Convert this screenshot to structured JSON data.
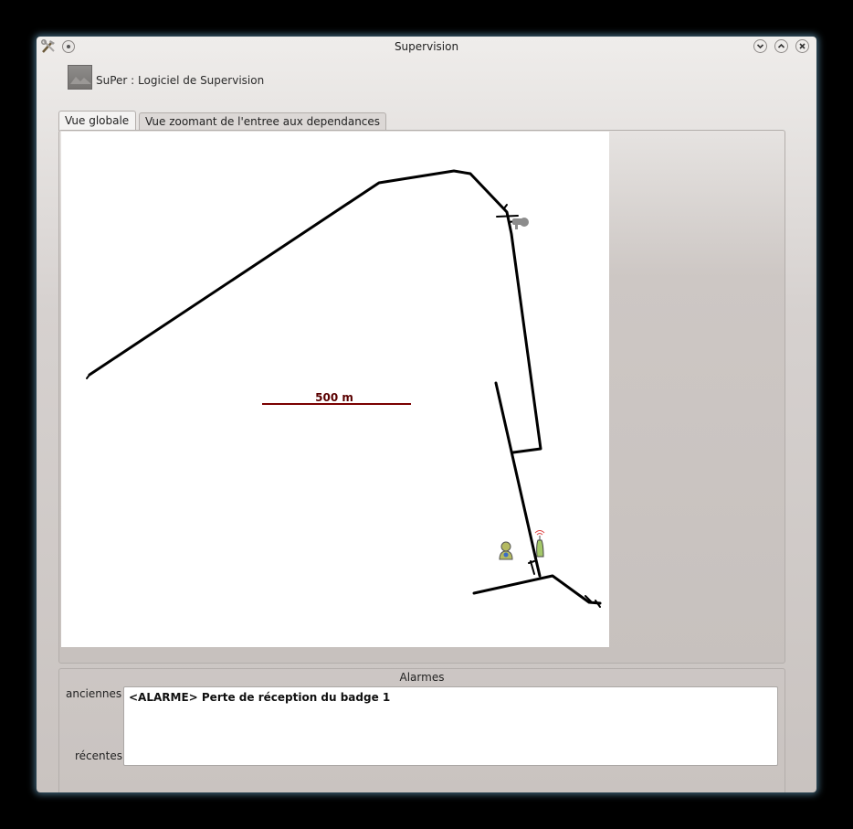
{
  "window": {
    "title": "Supervision",
    "controls": [
      "minimize",
      "maximize",
      "close"
    ]
  },
  "header": {
    "app_title": "SuPer : Logiciel de Supervision"
  },
  "tabs": [
    {
      "label": "Vue globale",
      "active": true
    },
    {
      "label": "Vue zoomant de l'entree aux dependances",
      "active": false
    }
  ],
  "map": {
    "scale_label": "500 m",
    "icons": [
      "camera-icon",
      "person-icon",
      "antenna-icon"
    ]
  },
  "alarms": {
    "title": "Alarmes",
    "label_old": "anciennes",
    "label_recent": "récentes",
    "messages": [
      "<ALARME> Perte de réception du badge 1"
    ]
  },
  "colors": {
    "scale_bar": "#7a0000",
    "map_lines": "#000000",
    "window_glow": "#78bee6"
  }
}
